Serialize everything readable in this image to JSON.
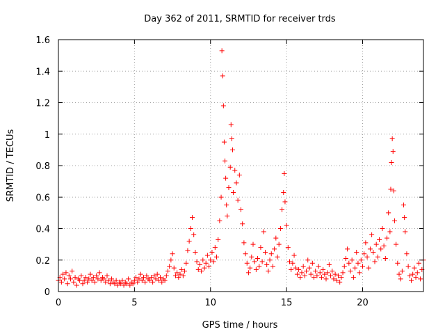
{
  "chart_data": {
    "type": "scatter",
    "title": "Day 362 of 2011, SRMTID for receiver trds",
    "xlabel": "GPS time / hours",
    "ylabel": "SRMTID / TECUs",
    "xlim": [
      0,
      24
    ],
    "ylim": [
      0,
      1.6
    ],
    "xticks": [
      0,
      5,
      10,
      15,
      20
    ],
    "xtick_labels": [
      "0",
      "5",
      "10",
      "15",
      "20"
    ],
    "yticks": [
      0,
      0.2,
      0.4,
      0.6,
      0.8,
      1,
      1.2,
      1.4,
      1.6
    ],
    "ytick_labels": [
      "0",
      "0.2",
      "0.4",
      "0.6",
      "0.8",
      "1",
      "1.2",
      "1.4",
      "1.6"
    ],
    "grid": true,
    "marker": "+",
    "color": "#ff0000",
    "series": [
      {
        "name": "SRMTID",
        "points": [
          [
            0.0,
            0.07
          ],
          [
            0.1,
            0.09
          ],
          [
            0.2,
            0.06
          ],
          [
            0.3,
            0.11
          ],
          [
            0.4,
            0.08
          ],
          [
            0.5,
            0.12
          ],
          [
            0.6,
            0.05
          ],
          [
            0.7,
            0.1
          ],
          [
            0.8,
            0.08
          ],
          [
            0.9,
            0.13
          ],
          [
            1.0,
            0.06
          ],
          [
            1.1,
            0.09
          ],
          [
            1.2,
            0.04
          ],
          [
            1.3,
            0.08
          ],
          [
            1.4,
            0.07
          ],
          [
            1.5,
            0.1
          ],
          [
            1.6,
            0.05
          ],
          [
            1.7,
            0.07
          ],
          [
            1.8,
            0.09
          ],
          [
            1.9,
            0.06
          ],
          [
            2.0,
            0.08
          ],
          [
            2.1,
            0.11
          ],
          [
            2.2,
            0.07
          ],
          [
            2.3,
            0.09
          ],
          [
            2.4,
            0.06
          ],
          [
            2.5,
            0.1
          ],
          [
            2.6,
            0.08
          ],
          [
            2.7,
            0.12
          ],
          [
            2.8,
            0.07
          ],
          [
            2.9,
            0.09
          ],
          [
            3.0,
            0.08
          ],
          [
            3.1,
            0.06
          ],
          [
            3.2,
            0.1
          ],
          [
            3.3,
            0.07
          ],
          [
            3.4,
            0.05
          ],
          [
            3.5,
            0.08
          ],
          [
            3.6,
            0.06
          ],
          [
            3.7,
            0.05
          ],
          [
            3.8,
            0.07
          ],
          [
            3.9,
            0.04
          ],
          [
            4.0,
            0.06
          ],
          [
            4.1,
            0.05
          ],
          [
            4.2,
            0.07
          ],
          [
            4.3,
            0.04
          ],
          [
            4.4,
            0.06
          ],
          [
            4.5,
            0.05
          ],
          [
            4.6,
            0.08
          ],
          [
            4.7,
            0.04
          ],
          [
            4.8,
            0.06
          ],
          [
            4.9,
            0.05
          ],
          [
            5.0,
            0.07
          ],
          [
            5.1,
            0.09
          ],
          [
            5.2,
            0.06
          ],
          [
            5.3,
            0.08
          ],
          [
            5.4,
            0.11
          ],
          [
            5.5,
            0.07
          ],
          [
            5.6,
            0.09
          ],
          [
            5.7,
            0.06
          ],
          [
            5.8,
            0.1
          ],
          [
            5.9,
            0.08
          ],
          [
            6.0,
            0.07
          ],
          [
            6.1,
            0.09
          ],
          [
            6.2,
            0.06
          ],
          [
            6.3,
            0.1
          ],
          [
            6.4,
            0.08
          ],
          [
            6.5,
            0.11
          ],
          [
            6.6,
            0.07
          ],
          [
            6.7,
            0.09
          ],
          [
            6.8,
            0.06
          ],
          [
            6.9,
            0.08
          ],
          [
            7.0,
            0.07
          ],
          [
            7.1,
            0.1
          ],
          [
            7.2,
            0.13
          ],
          [
            7.3,
            0.16
          ],
          [
            7.4,
            0.2
          ],
          [
            7.5,
            0.24
          ],
          [
            7.6,
            0.15
          ],
          [
            7.7,
            0.1
          ],
          [
            7.8,
            0.12
          ],
          [
            7.9,
            0.09
          ],
          [
            8.0,
            0.11
          ],
          [
            8.1,
            0.14
          ],
          [
            8.2,
            0.1
          ],
          [
            8.3,
            0.13
          ],
          [
            8.4,
            0.18
          ],
          [
            8.5,
            0.26
          ],
          [
            8.6,
            0.32
          ],
          [
            8.7,
            0.4
          ],
          [
            8.8,
            0.47
          ],
          [
            8.9,
            0.36
          ],
          [
            9.0,
            0.25
          ],
          [
            9.1,
            0.19
          ],
          [
            9.2,
            0.14
          ],
          [
            9.3,
            0.17
          ],
          [
            9.4,
            0.13
          ],
          [
            9.5,
            0.2
          ],
          [
            9.6,
            0.15
          ],
          [
            9.7,
            0.18
          ],
          [
            9.8,
            0.23
          ],
          [
            9.9,
            0.16
          ],
          [
            10.0,
            0.2
          ],
          [
            10.1,
            0.25
          ],
          [
            10.2,
            0.19
          ],
          [
            10.3,
            0.28
          ],
          [
            10.4,
            0.22
          ],
          [
            10.5,
            0.33
          ],
          [
            10.6,
            0.45
          ],
          [
            10.7,
            0.6
          ],
          [
            10.75,
            1.53
          ],
          [
            10.8,
            1.37
          ],
          [
            10.85,
            1.18
          ],
          [
            10.9,
            0.95
          ],
          [
            10.95,
            0.83
          ],
          [
            11.0,
            0.72
          ],
          [
            11.05,
            0.55
          ],
          [
            11.1,
            0.48
          ],
          [
            11.2,
            0.66
          ],
          [
            11.3,
            0.79
          ],
          [
            11.35,
            1.06
          ],
          [
            11.4,
            0.97
          ],
          [
            11.45,
            0.9
          ],
          [
            11.5,
            0.63
          ],
          [
            11.6,
            0.77
          ],
          [
            11.7,
            0.69
          ],
          [
            11.8,
            0.58
          ],
          [
            11.9,
            0.74
          ],
          [
            12.0,
            0.52
          ],
          [
            12.1,
            0.43
          ],
          [
            12.2,
            0.31
          ],
          [
            12.3,
            0.24
          ],
          [
            12.4,
            0.18
          ],
          [
            12.5,
            0.12
          ],
          [
            12.6,
            0.15
          ],
          [
            12.7,
            0.22
          ],
          [
            12.8,
            0.3
          ],
          [
            12.9,
            0.19
          ],
          [
            13.0,
            0.14
          ],
          [
            13.1,
            0.21
          ],
          [
            13.2,
            0.16
          ],
          [
            13.3,
            0.28
          ],
          [
            13.4,
            0.19
          ],
          [
            13.5,
            0.38
          ],
          [
            13.6,
            0.25
          ],
          [
            13.7,
            0.17
          ],
          [
            13.8,
            0.13
          ],
          [
            13.9,
            0.2
          ],
          [
            14.0,
            0.24
          ],
          [
            14.1,
            0.16
          ],
          [
            14.2,
            0.27
          ],
          [
            14.3,
            0.34
          ],
          [
            14.4,
            0.22
          ],
          [
            14.5,
            0.3
          ],
          [
            14.6,
            0.4
          ],
          [
            14.7,
            0.52
          ],
          [
            14.8,
            0.63
          ],
          [
            14.85,
            0.75
          ],
          [
            14.9,
            0.57
          ],
          [
            15.0,
            0.42
          ],
          [
            15.1,
            0.28
          ],
          [
            15.2,
            0.19
          ],
          [
            15.3,
            0.14
          ],
          [
            15.4,
            0.18
          ],
          [
            15.5,
            0.23
          ],
          [
            15.6,
            0.15
          ],
          [
            15.7,
            0.11
          ],
          [
            15.8,
            0.14
          ],
          [
            15.9,
            0.09
          ],
          [
            16.0,
            0.12
          ],
          [
            16.1,
            0.16
          ],
          [
            16.2,
            0.1
          ],
          [
            16.3,
            0.13
          ],
          [
            16.4,
            0.2
          ],
          [
            16.5,
            0.15
          ],
          [
            16.6,
            0.11
          ],
          [
            16.7,
            0.18
          ],
          [
            16.8,
            0.09
          ],
          [
            16.9,
            0.13
          ],
          [
            17.0,
            0.1
          ],
          [
            17.1,
            0.16
          ],
          [
            17.2,
            0.12
          ],
          [
            17.3,
            0.09
          ],
          [
            17.4,
            0.14
          ],
          [
            17.5,
            0.11
          ],
          [
            17.6,
            0.08
          ],
          [
            17.7,
            0.12
          ],
          [
            17.8,
            0.17
          ],
          [
            17.9,
            0.1
          ],
          [
            18.0,
            0.13
          ],
          [
            18.1,
            0.08
          ],
          [
            18.2,
            0.11
          ],
          [
            18.3,
            0.07
          ],
          [
            18.4,
            0.1
          ],
          [
            18.5,
            0.06
          ],
          [
            18.6,
            0.09
          ],
          [
            18.7,
            0.12
          ],
          [
            18.8,
            0.16
          ],
          [
            18.9,
            0.21
          ],
          [
            19.0,
            0.27
          ],
          [
            19.1,
            0.18
          ],
          [
            19.2,
            0.13
          ],
          [
            19.3,
            0.2
          ],
          [
            19.4,
            0.09
          ],
          [
            19.5,
            0.15
          ],
          [
            19.6,
            0.25
          ],
          [
            19.7,
            0.18
          ],
          [
            19.8,
            0.12
          ],
          [
            19.9,
            0.2
          ],
          [
            20.0,
            0.16
          ],
          [
            20.1,
            0.24
          ],
          [
            20.2,
            0.31
          ],
          [
            20.3,
            0.22
          ],
          [
            20.4,
            0.15
          ],
          [
            20.5,
            0.27
          ],
          [
            20.6,
            0.36
          ],
          [
            20.7,
            0.25
          ],
          [
            20.8,
            0.19
          ],
          [
            20.9,
            0.3
          ],
          [
            21.0,
            0.22
          ],
          [
            21.1,
            0.33
          ],
          [
            21.2,
            0.27
          ],
          [
            21.3,
            0.4
          ],
          [
            21.4,
            0.29
          ],
          [
            21.5,
            0.21
          ],
          [
            21.6,
            0.34
          ],
          [
            21.7,
            0.5
          ],
          [
            21.8,
            0.38
          ],
          [
            21.85,
            0.65
          ],
          [
            21.9,
            0.82
          ],
          [
            21.95,
            0.97
          ],
          [
            22.0,
            0.89
          ],
          [
            22.05,
            0.64
          ],
          [
            22.1,
            0.45
          ],
          [
            22.2,
            0.3
          ],
          [
            22.3,
            0.18
          ],
          [
            22.4,
            0.11
          ],
          [
            22.5,
            0.08
          ],
          [
            22.6,
            0.13
          ],
          [
            22.7,
            0.55
          ],
          [
            22.75,
            0.47
          ],
          [
            22.8,
            0.38
          ],
          [
            22.9,
            0.24
          ],
          [
            23.0,
            0.16
          ],
          [
            23.1,
            0.1
          ],
          [
            23.2,
            0.07
          ],
          [
            23.3,
            0.11
          ],
          [
            23.4,
            0.15
          ],
          [
            23.5,
            0.09
          ],
          [
            23.6,
            0.12
          ],
          [
            23.7,
            0.18
          ],
          [
            23.8,
            0.08
          ],
          [
            23.9,
            0.14
          ],
          [
            24.0,
            0.2
          ]
        ]
      }
    ]
  }
}
